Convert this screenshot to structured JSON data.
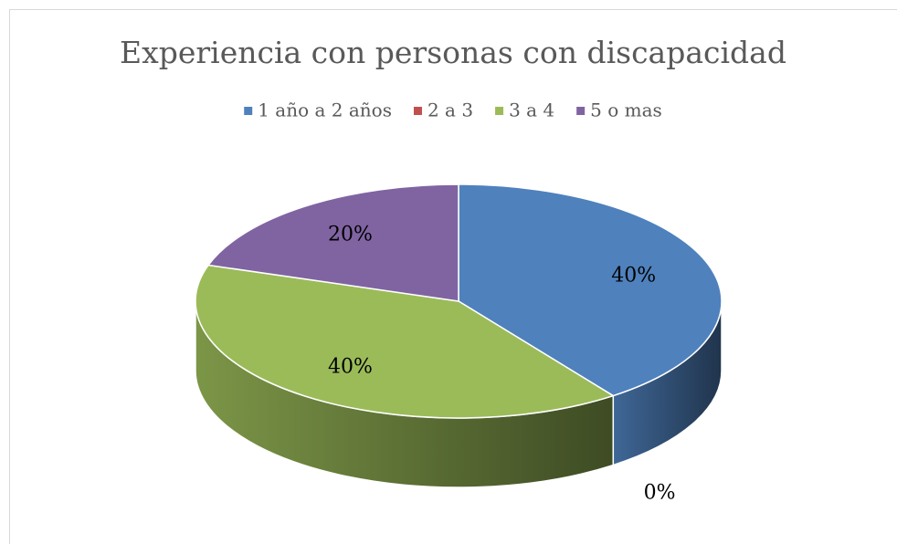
{
  "chart_data": {
    "type": "pie3d",
    "title": "Experiencia con personas con discapacidad",
    "categories": [
      "1 año a 2 años",
      "2  a 3",
      "3 a 4",
      "5 o mas"
    ],
    "values": [
      40,
      0,
      40,
      20
    ],
    "value_labels": [
      "40%",
      "0%",
      "40%",
      "20%"
    ],
    "colors": [
      "#4f81bd",
      "#c0504d",
      "#9bbb59",
      "#8064a2"
    ],
    "legend": "top"
  }
}
